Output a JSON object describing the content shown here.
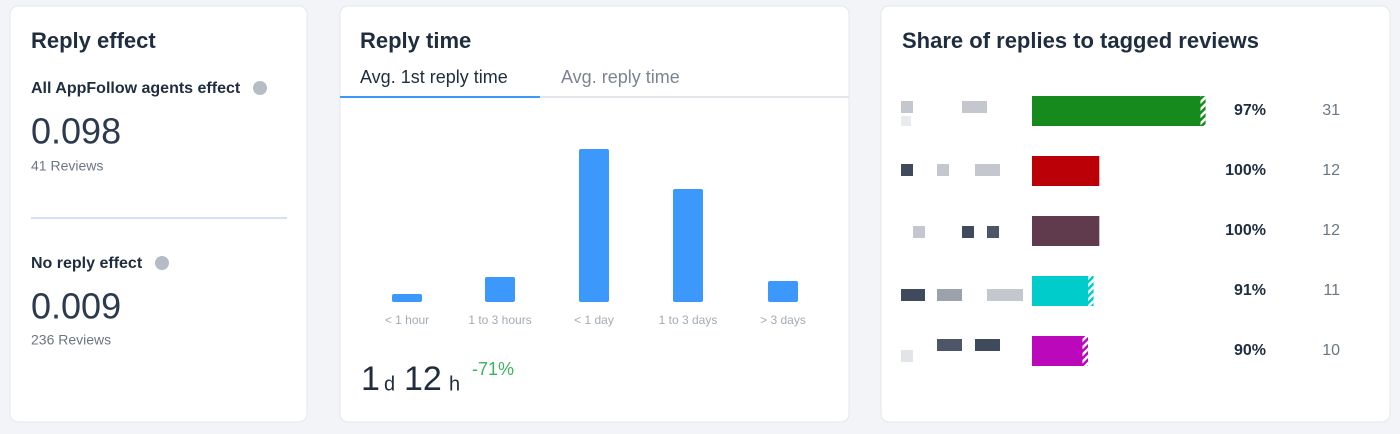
{
  "reply_effect": {
    "title": "Reply effect",
    "agents": {
      "label": "All AppFollow agents effect",
      "value": "0.098",
      "reviews": "41 Reviews"
    },
    "no_reply": {
      "label": "No reply effect",
      "value": "0.009",
      "reviews": "236 Reviews"
    }
  },
  "reply_time": {
    "title": "Reply time",
    "tabs": [
      "Avg. 1st reply time",
      "Avg. reply time"
    ],
    "chart": {
      "type": "bar",
      "categories": [
        "< 1 hour",
        "1 to 3 hours",
        "< 1 day",
        "1 to 3 days",
        "> 3 days"
      ],
      "values": [
        8,
        25,
        153,
        113,
        21
      ],
      "color": "#3d98fb"
    },
    "summary": {
      "days": "1",
      "days_unit": "d",
      "hours": "12",
      "hours_unit": "h",
      "change": "-71%"
    }
  },
  "share": {
    "title": "Share of replies to tagged reviews",
    "chart": {
      "type": "bar",
      "values": [
        97,
        100,
        100,
        91,
        90
      ],
      "value_labels": [
        "97%",
        "100%",
        "100%",
        "91%",
        "90%"
      ],
      "counts": [
        31,
        12,
        12,
        11,
        10
      ],
      "colors": [
        "#168a1c",
        "#bb0007",
        "#603a4d",
        "#00cccc",
        "#bb08bb"
      ]
    }
  }
}
